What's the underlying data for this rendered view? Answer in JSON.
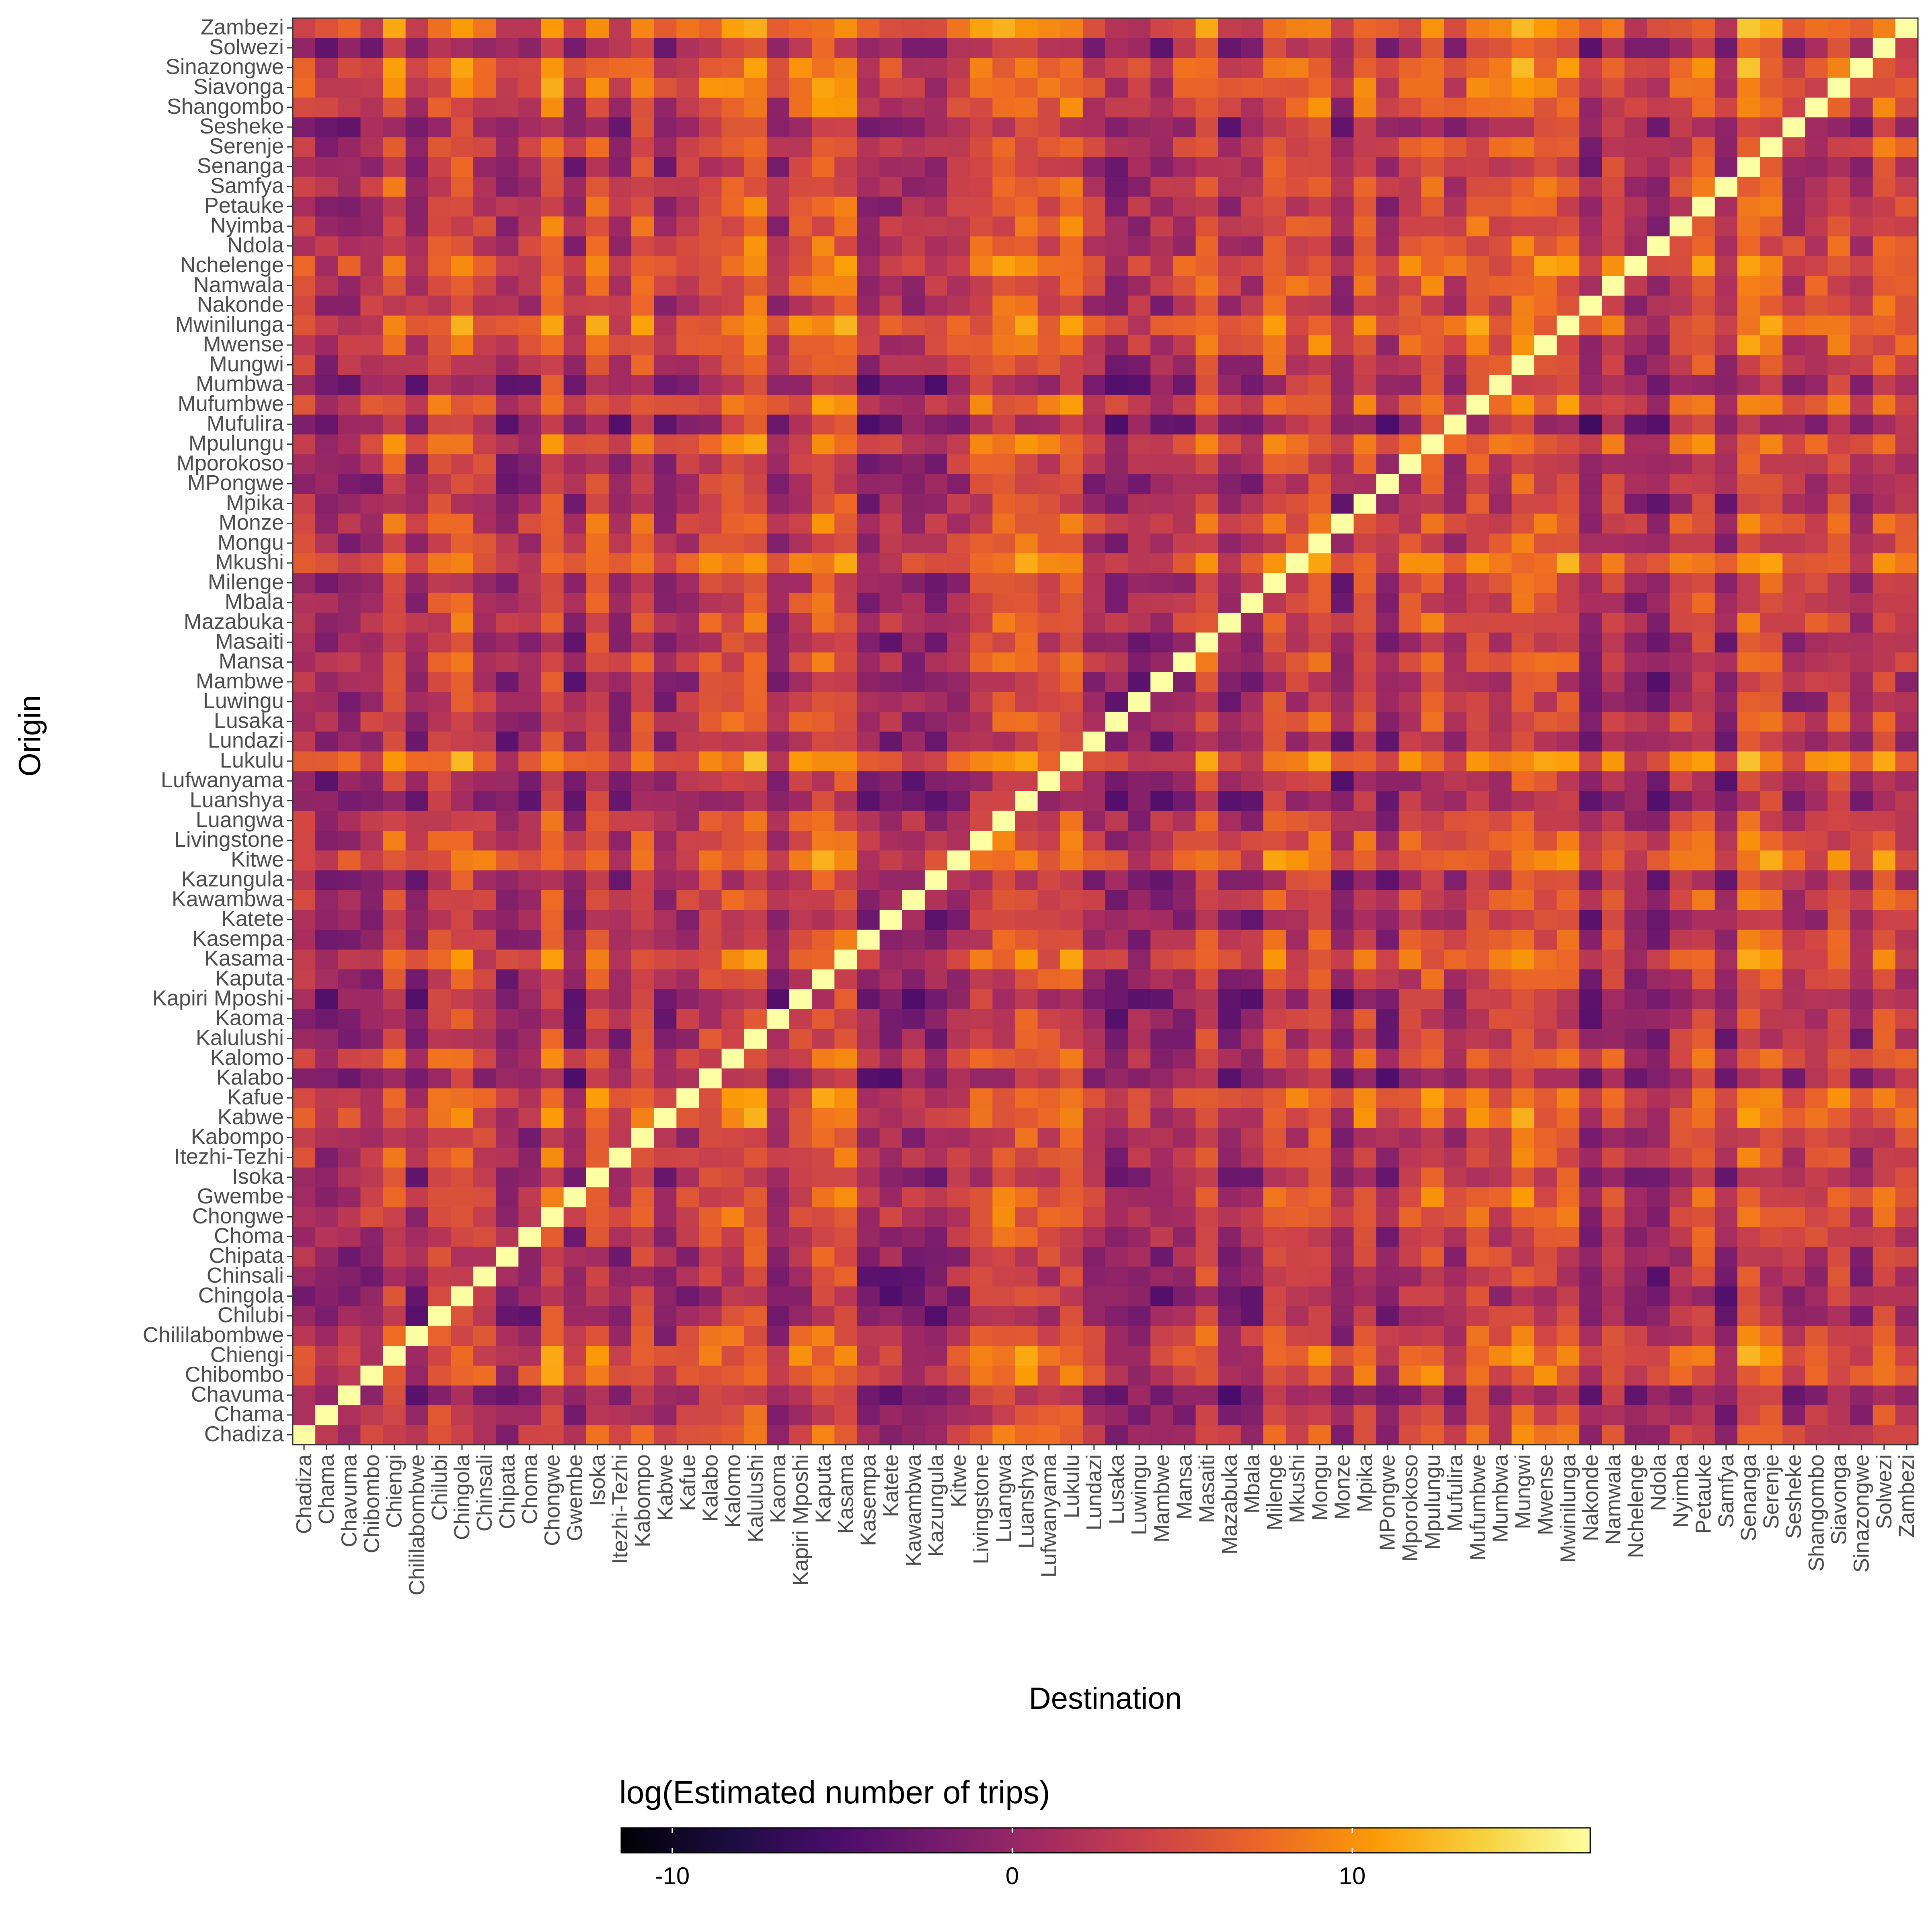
{
  "chart_data": {
    "type": "heatmap",
    "xlabel": "Destination",
    "ylabel": "Origin",
    "categories": [
      "Chadiza",
      "Chama",
      "Chavuma",
      "Chibombo",
      "Chiengi",
      "Chililabombwe",
      "Chilubi",
      "Chingola",
      "Chinsali",
      "Chipata",
      "Choma",
      "Chongwe",
      "Gwembe",
      "Isoka",
      "Itezhi-Tezhi",
      "Kabompo",
      "Kabwe",
      "Kafue",
      "Kalabo",
      "Kalomo",
      "Kalulushi",
      "Kaoma",
      "Kapiri Mposhi",
      "Kaputa",
      "Kasama",
      "Kasempa",
      "Katete",
      "Kawambwa",
      "Kazungula",
      "Kitwe",
      "Livingstone",
      "Luangwa",
      "Luanshya",
      "Lufwanyama",
      "Lukulu",
      "Lundazi",
      "Lusaka",
      "Luwingu",
      "Mambwe",
      "Mansa",
      "Masaiti",
      "Mazabuka",
      "Mbala",
      "Milenge",
      "Mkushi",
      "Mongu",
      "Monze",
      "Mpika",
      "MPongwe",
      "Mporokoso",
      "Mpulungu",
      "Mufulira",
      "Mufumbwe",
      "Mumbwa",
      "Mungwi",
      "Mwense",
      "Mwinilunga",
      "Nakonde",
      "Namwala",
      "Nchelenge",
      "Ndola",
      "Nyimba",
      "Petauke",
      "Samfya",
      "Senanga",
      "Serenje",
      "Sesheke",
      "Shangombo",
      "Siavonga",
      "Sinazongwe",
      "Solwezi",
      "Zambezi"
    ],
    "legend": {
      "title": "log(Estimated number of trips)",
      "ticks": [
        -10,
        0,
        10
      ],
      "tick_labels": [
        "-10",
        "0",
        "10"
      ],
      "range": [
        -11.5,
        17
      ],
      "placement": "bottom",
      "colormap": "inferno",
      "stops": [
        "#000004",
        "#1b0c41",
        "#4a0c6b",
        "#781c6d",
        "#a52c60",
        "#cf4446",
        "#ed6925",
        "#fb9b06",
        "#f7d13d",
        "#fcffa4"
      ]
    },
    "diagonal_value": 17,
    "value_range": [
      -11.5,
      17
    ],
    "seed": 20240517,
    "grid": false,
    "panel_border": true,
    "values_note": ""
  }
}
